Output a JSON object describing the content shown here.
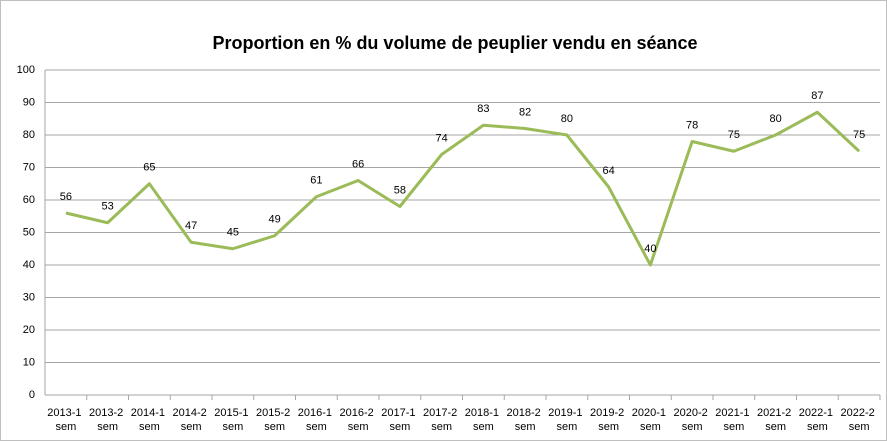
{
  "chart_data": {
    "type": "line",
    "title": "Proportion en % du volume de peuplier vendu en séance",
    "categories": [
      "2013-1 sem",
      "2013-2 sem",
      "2014-1 sem",
      "2014-2 sem",
      "2015-1 sem",
      "2015-2 sem",
      "2016-1 sem",
      "2016-2 sem",
      "2017-1 sem",
      "2017-2 sem",
      "2018-1 sem",
      "2018-2 sem",
      "2019-1 sem",
      "2019-2 sem",
      "2020-1 sem",
      "2020-2 sem",
      "2021-1 sem",
      "2021-2 sem",
      "2022-1 sem",
      "2022-2 sem"
    ],
    "series": [
      {
        "color": "#9bbb59",
        "values": [
          56,
          53,
          65,
          47,
          45,
          49,
          61,
          66,
          58,
          74,
          83,
          82,
          80,
          64,
          40,
          78,
          75,
          80,
          87,
          75
        ]
      }
    ],
    "ylim": [
      0,
      100
    ],
    "yticks": [
      0,
      10,
      20,
      30,
      40,
      50,
      60,
      70,
      80,
      90,
      100
    ],
    "grid": true
  }
}
